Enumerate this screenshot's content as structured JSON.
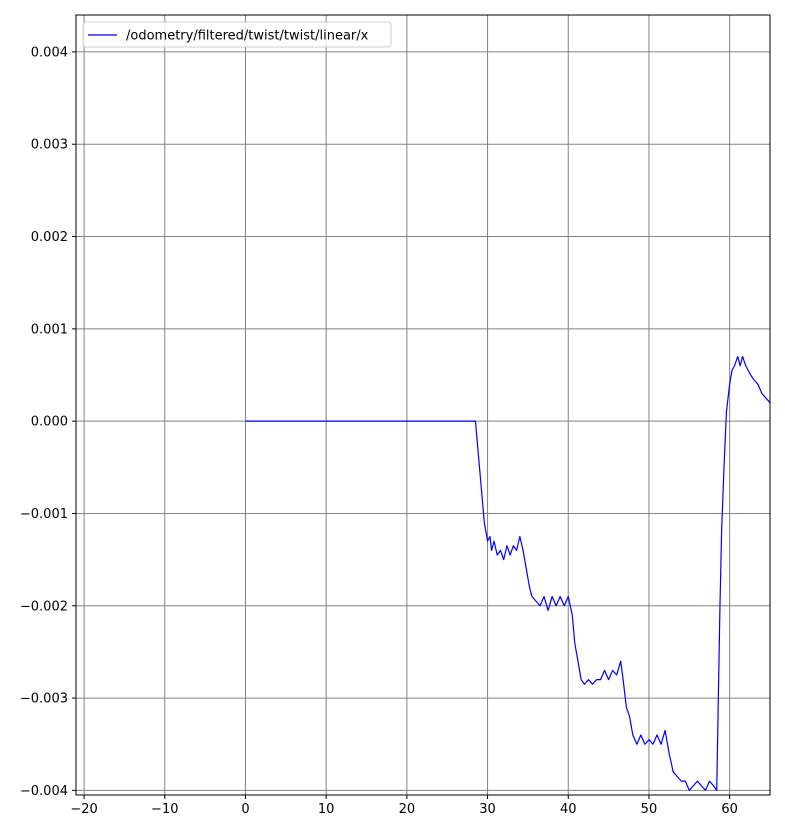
{
  "chart_data": {
    "type": "line",
    "title": "",
    "xlabel": "",
    "ylabel": "",
    "xlim": [
      -21,
      65
    ],
    "ylim": [
      -0.00405,
      0.0044
    ],
    "grid": true,
    "legend_position": "top-left",
    "x_ticks": [
      -20,
      -10,
      0,
      10,
      20,
      30,
      40,
      50,
      60
    ],
    "x_tick_labels": [
      "−20",
      "−10",
      "0",
      "10",
      "20",
      "30",
      "40",
      "50",
      "60"
    ],
    "y_ticks": [
      0.004,
      0.003,
      0.002,
      0.001,
      0.0,
      -0.001,
      -0.002,
      -0.003,
      -0.004
    ],
    "y_tick_labels": [
      "0.004",
      "0.003",
      "0.002",
      "0.001",
      "0.000",
      "−0.001",
      "−0.002",
      "−0.003",
      "−0.004"
    ],
    "series": [
      {
        "name": "/odometry/filtered/twist/twist/linear/x",
        "color": "#0000ff",
        "x": [
          0,
          28.5,
          28.7,
          29.0,
          29.3,
          29.6,
          30.0,
          30.3,
          30.5,
          30.8,
          31.2,
          31.6,
          32.0,
          32.4,
          32.8,
          33.2,
          33.6,
          34.0,
          34.4,
          34.8,
          35.2,
          35.5,
          36.0,
          36.5,
          37.0,
          37.5,
          38.0,
          38.5,
          39.0,
          39.5,
          40.0,
          40.5,
          40.8,
          41.2,
          41.6,
          42.0,
          42.5,
          43.0,
          43.5,
          44.0,
          44.5,
          45.0,
          45.5,
          46.0,
          46.5,
          46.8,
          47.2,
          47.6,
          48.0,
          48.5,
          49.0,
          49.5,
          50.0,
          50.5,
          51.0,
          51.5,
          52.0,
          52.5,
          53.0,
          53.5,
          54.0,
          54.5,
          55.0,
          55.5,
          56.0,
          56.5,
          57.0,
          57.5,
          58.0,
          58.4,
          58.6,
          58.8,
          59.0,
          59.3,
          59.6,
          60.0,
          60.3,
          60.6,
          61.0,
          61.3,
          61.6,
          62.0,
          62.3,
          62.6,
          63.0,
          63.5,
          64.0,
          64.5,
          65.0
        ],
        "y": [
          0.0,
          0.0,
          -0.0002,
          -0.0005,
          -0.0008,
          -0.0011,
          -0.0013,
          -0.00125,
          -0.0014,
          -0.0013,
          -0.00145,
          -0.0014,
          -0.0015,
          -0.00135,
          -0.00145,
          -0.00135,
          -0.0014,
          -0.00125,
          -0.0014,
          -0.0016,
          -0.0018,
          -0.0019,
          -0.00195,
          -0.002,
          -0.0019,
          -0.00205,
          -0.0019,
          -0.002,
          -0.0019,
          -0.002,
          -0.0019,
          -0.0021,
          -0.0024,
          -0.0026,
          -0.0028,
          -0.00285,
          -0.0028,
          -0.00285,
          -0.0028,
          -0.0028,
          -0.0027,
          -0.0028,
          -0.0027,
          -0.00275,
          -0.0026,
          -0.0028,
          -0.0031,
          -0.0032,
          -0.0034,
          -0.0035,
          -0.0034,
          -0.0035,
          -0.00345,
          -0.0035,
          -0.0034,
          -0.0035,
          -0.00335,
          -0.0036,
          -0.0038,
          -0.00385,
          -0.0039,
          -0.0039,
          -0.004,
          -0.00395,
          -0.0039,
          -0.00395,
          -0.004,
          -0.0039,
          -0.00395,
          -0.004,
          -0.003,
          -0.002,
          -0.0012,
          -0.0005,
          0.0001,
          0.0004,
          0.00055,
          0.0006,
          0.0007,
          0.0006,
          0.0007,
          0.0006,
          0.00055,
          0.0005,
          0.00045,
          0.0004,
          0.0003,
          0.00025,
          0.0002
        ]
      }
    ]
  }
}
